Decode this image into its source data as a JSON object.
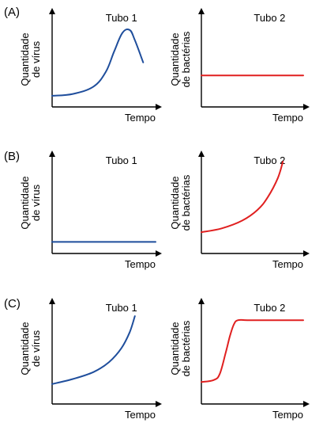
{
  "chart_data": [
    {
      "type": "line",
      "panel": "(A)",
      "title": "Tubo 1",
      "xlabel": "Tempo",
      "ylabel": [
        "Quantidade",
        "de vírus"
      ],
      "ylim": [
        0,
        100
      ],
      "series": [
        {
          "color": "#1f4e9c",
          "x": [
            0,
            20,
            40,
            52,
            60,
            68,
            75,
            80,
            88
          ],
          "y": [
            12,
            14,
            22,
            38,
            60,
            80,
            83,
            72,
            48
          ]
        }
      ]
    },
    {
      "type": "line",
      "panel": "(A)",
      "title": "Tubo 2",
      "xlabel": "Tempo",
      "ylabel": [
        "Quantidade",
        "de bactérias"
      ],
      "ylim": [
        0,
        100
      ],
      "series": [
        {
          "color": "#e02020",
          "x": [
            0,
            100
          ],
          "y": [
            34,
            34
          ]
        }
      ]
    },
    {
      "type": "line",
      "panel": "(B)",
      "title": "Tubo 1",
      "xlabel": "Tempo",
      "ylabel": [
        "Quantidade",
        "de vírus"
      ],
      "ylim": [
        0,
        100
      ],
      "series": [
        {
          "color": "#1f4e9c",
          "x": [
            0,
            100
          ],
          "y": [
            12,
            12
          ]
        }
      ]
    },
    {
      "type": "line",
      "panel": "(B)",
      "title": "Tubo 2",
      "xlabel": "Tempo",
      "ylabel": [
        "Quantidade",
        "de bactérias"
      ],
      "ylim": [
        0,
        100
      ],
      "series": [
        {
          "color": "#e02020",
          "x": [
            0,
            20,
            40,
            55,
            65,
            75,
            80
          ],
          "y": [
            22,
            26,
            34,
            45,
            58,
            78,
            95
          ]
        }
      ]
    },
    {
      "type": "line",
      "panel": "(C)",
      "title": "Tubo 1",
      "xlabel": "Tempo",
      "ylabel": [
        "Quantidade",
        "de vírus"
      ],
      "ylim": [
        0,
        100
      ],
      "series": [
        {
          "color": "#1f4e9c",
          "x": [
            0,
            20,
            40,
            55,
            67,
            75,
            80
          ],
          "y": [
            20,
            25,
            32,
            42,
            56,
            72,
            88
          ]
        }
      ]
    },
    {
      "type": "line",
      "panel": "(C)",
      "title": "Tubo 2",
      "xlabel": "Tempo",
      "ylabel": [
        "Quantidade",
        "de bactérias"
      ],
      "ylim": [
        0,
        100
      ],
      "series": [
        {
          "color": "#e02020",
          "x": [
            0,
            12,
            18,
            24,
            28,
            32,
            36,
            45,
            70,
            100
          ],
          "y": [
            22,
            24,
            30,
            52,
            68,
            80,
            84,
            84,
            84,
            84
          ]
        }
      ]
    }
  ]
}
